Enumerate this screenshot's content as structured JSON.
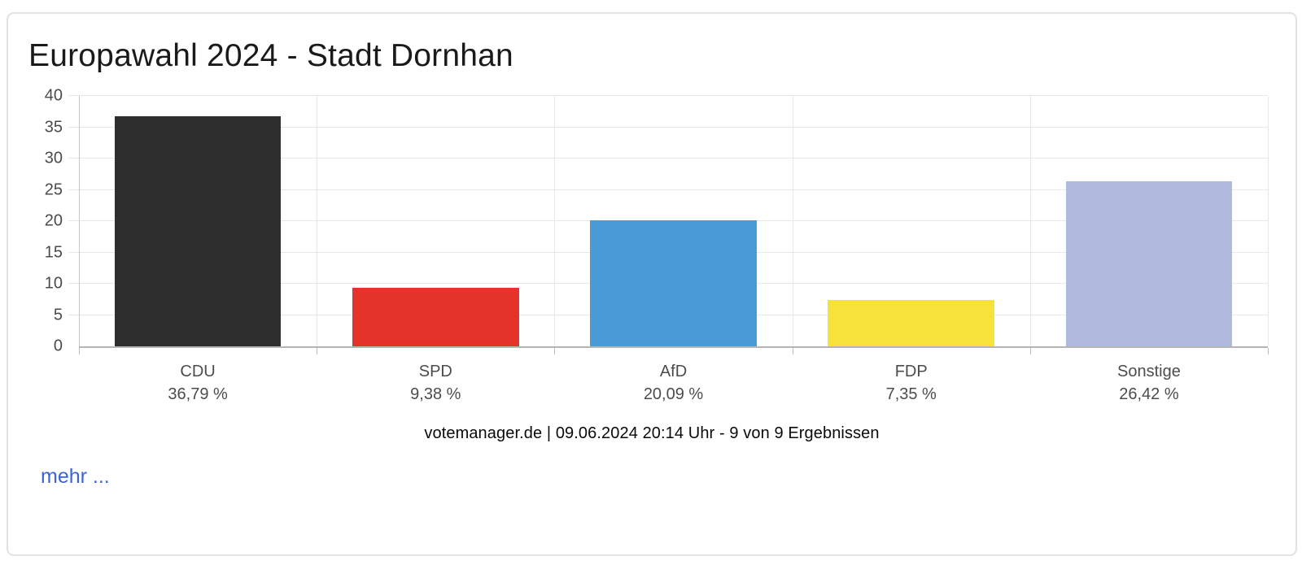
{
  "card": {
    "title": "Europawahl 2024 - Stadt Dornhan",
    "source_line": "votemanager.de | 09.06.2024 20:14 Uhr - 9 von 9 Ergebnissen",
    "more_link_label": "mehr ..."
  },
  "chart_data": {
    "type": "bar",
    "title": "Europawahl 2024 - Stadt Dornhan",
    "categories": [
      "CDU",
      "SPD",
      "AfD",
      "FDP",
      "Sonstige"
    ],
    "values": [
      36.79,
      9.38,
      20.09,
      7.35,
      26.42
    ],
    "value_labels": [
      "36,79 %",
      "9,38 %",
      "20,09 %",
      "7,35 %",
      "26,42 %"
    ],
    "bar_colors": [
      "#2e2e2e",
      "#e4332a",
      "#4a9bd5",
      "#f7e23c",
      "#afb9dc"
    ],
    "xlabel": "",
    "ylabel": "",
    "ylim": [
      0,
      40
    ],
    "yticks": [
      0,
      5,
      10,
      15,
      20,
      25,
      30,
      35,
      40
    ],
    "grid": true,
    "legend": "none",
    "colors": {
      "gridline": "#e7e7e7",
      "axis_line": "#b5b5b5",
      "tick_label": "#4b4b4b",
      "link_blue": "#3e63d8"
    }
  }
}
